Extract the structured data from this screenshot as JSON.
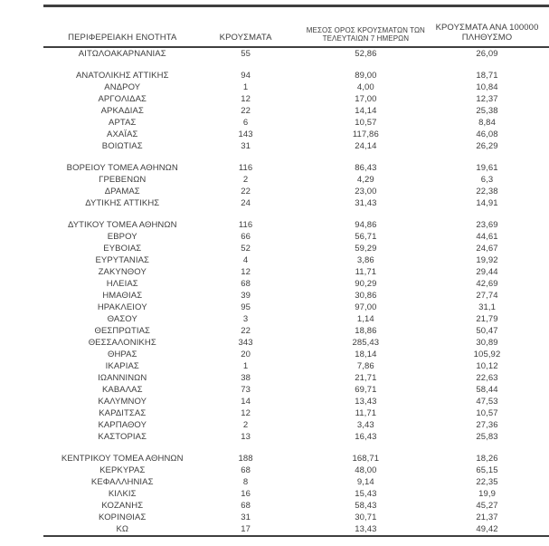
{
  "colors": {
    "text": "#3d3d3d",
    "rule": "#3f3f3f",
    "background": "#ffffff"
  },
  "table": {
    "headers": {
      "col1": {
        "line1": "",
        "line2": "ΠΕΡΙΦΕΡΕΙΑΚΗ ΕΝΟΤΗΤΑ"
      },
      "col2": {
        "line1": "",
        "line2": "ΚΡΟΥΣΜΑΤΑ"
      },
      "col3": {
        "line1": "ΜΕΣΟΣ ΟΡΟΣ ΚΡΟΥΣΜΑΤΩΝ ΤΩΝ",
        "line2": "ΤΕΛΕΥΤΑΙΩΝ 7 ΗΜΕΡΩΝ"
      },
      "col4": {
        "line1": "ΚΡΟΥΣΜΑΤΑ ΑΝΑ 100000",
        "line2": "ΠΛΗΘΥΣΜΟ"
      }
    },
    "groups": [
      {
        "rows": [
          [
            "ΑΙΤΩΛΟΑΚΑΡΝΑΝΙΑΣ",
            "55",
            "52,86",
            "26,09"
          ]
        ]
      },
      {
        "rows": [
          [
            "ΑΝΑΤΟΛΙΚΗΣ ΑΤΤΙΚΗΣ",
            "94",
            "89,00",
            "18,71"
          ],
          [
            "ΑΝΔΡΟΥ",
            "1",
            "4,00",
            "10,84"
          ],
          [
            "ΑΡΓΟΛΙΔΑΣ",
            "12",
            "17,00",
            "12,37"
          ],
          [
            "ΑΡΚΑΔΙΑΣ",
            "22",
            "14,14",
            "25,38"
          ],
          [
            "ΑΡΤΑΣ",
            "6",
            "10,57",
            "8,84"
          ],
          [
            "ΑΧΑΪΑΣ",
            "143",
            "117,86",
            "46,08"
          ],
          [
            "ΒΟΙΩΤΙΑΣ",
            "31",
            "24,14",
            "26,29"
          ]
        ]
      },
      {
        "rows": [
          [
            "ΒΟΡΕΙΟΥ ΤΟΜΕΑ ΑΘΗΝΩΝ",
            "116",
            "86,43",
            "19,61"
          ],
          [
            "ΓΡΕΒΕΝΩΝ",
            "2",
            "4,29",
            "6,3"
          ],
          [
            "ΔΡΑΜΑΣ",
            "22",
            "23,00",
            "22,38"
          ],
          [
            "ΔΥΤΙΚΗΣ ΑΤΤΙΚΗΣ",
            "24",
            "31,43",
            "14,91"
          ]
        ]
      },
      {
        "rows": [
          [
            "ΔΥΤΙΚΟΥ ΤΟΜΕΑ ΑΘΗΝΩΝ",
            "116",
            "94,86",
            "23,69"
          ],
          [
            "ΕΒΡΟΥ",
            "66",
            "56,71",
            "44,61"
          ],
          [
            "ΕΥΒΟΙΑΣ",
            "52",
            "59,29",
            "24,67"
          ],
          [
            "ΕΥΡΥΤΑΝΙΑΣ",
            "4",
            "3,86",
            "19,92"
          ],
          [
            "ΖΑΚΥΝΘΟΥ",
            "12",
            "11,71",
            "29,44"
          ],
          [
            "ΗΛΕΙΑΣ",
            "68",
            "90,29",
            "42,69"
          ],
          [
            "ΗΜΑΘΙΑΣ",
            "39",
            "30,86",
            "27,74"
          ],
          [
            "ΗΡΑΚΛΕΙΟΥ",
            "95",
            "97,00",
            "31,1"
          ],
          [
            "ΘΑΣΟΥ",
            "3",
            "1,14",
            "21,79"
          ],
          [
            "ΘΕΣΠΡΩΤΙΑΣ",
            "22",
            "18,86",
            "50,47"
          ],
          [
            "ΘΕΣΣΑΛΟΝΙΚΗΣ",
            "343",
            "285,43",
            "30,89"
          ],
          [
            "ΘΗΡΑΣ",
            "20",
            "18,14",
            "105,92"
          ],
          [
            "ΙΚΑΡΙΑΣ",
            "1",
            "7,86",
            "10,12"
          ],
          [
            "ΙΩΑΝΝΙΝΩΝ",
            "38",
            "21,71",
            "22,63"
          ],
          [
            "ΚΑΒΑΛΑΣ",
            "73",
            "69,71",
            "58,44"
          ],
          [
            "ΚΑΛΥΜΝΟΥ",
            "14",
            "13,43",
            "47,53"
          ],
          [
            "ΚΑΡΔΙΤΣΑΣ",
            "12",
            "11,71",
            "10,57"
          ],
          [
            "ΚΑΡΠΑΘΟΥ",
            "2",
            "3,43",
            "27,36"
          ],
          [
            "ΚΑΣΤΟΡΙΑΣ",
            "13",
            "16,43",
            "25,83"
          ]
        ]
      },
      {
        "rows": [
          [
            "ΚΕΝΤΡΙΚΟΥ ΤΟΜΕΑ ΑΘΗΝΩΝ",
            "188",
            "168,71",
            "18,26"
          ],
          [
            "ΚΕΡΚΥΡΑΣ",
            "68",
            "48,00",
            "65,15"
          ],
          [
            "ΚΕΦΑΛΛΗΝΙΑΣ",
            "8",
            "9,14",
            "22,35"
          ],
          [
            "ΚΙΛΚΙΣ",
            "16",
            "15,43",
            "19,9"
          ],
          [
            "ΚΟΖΑΝΗΣ",
            "68",
            "58,43",
            "45,27"
          ],
          [
            "ΚΟΡΙΝΘΙΑΣ",
            "31",
            "30,71",
            "21,37"
          ],
          [
            "ΚΩ",
            "17",
            "13,43",
            "49,42"
          ]
        ]
      }
    ]
  }
}
